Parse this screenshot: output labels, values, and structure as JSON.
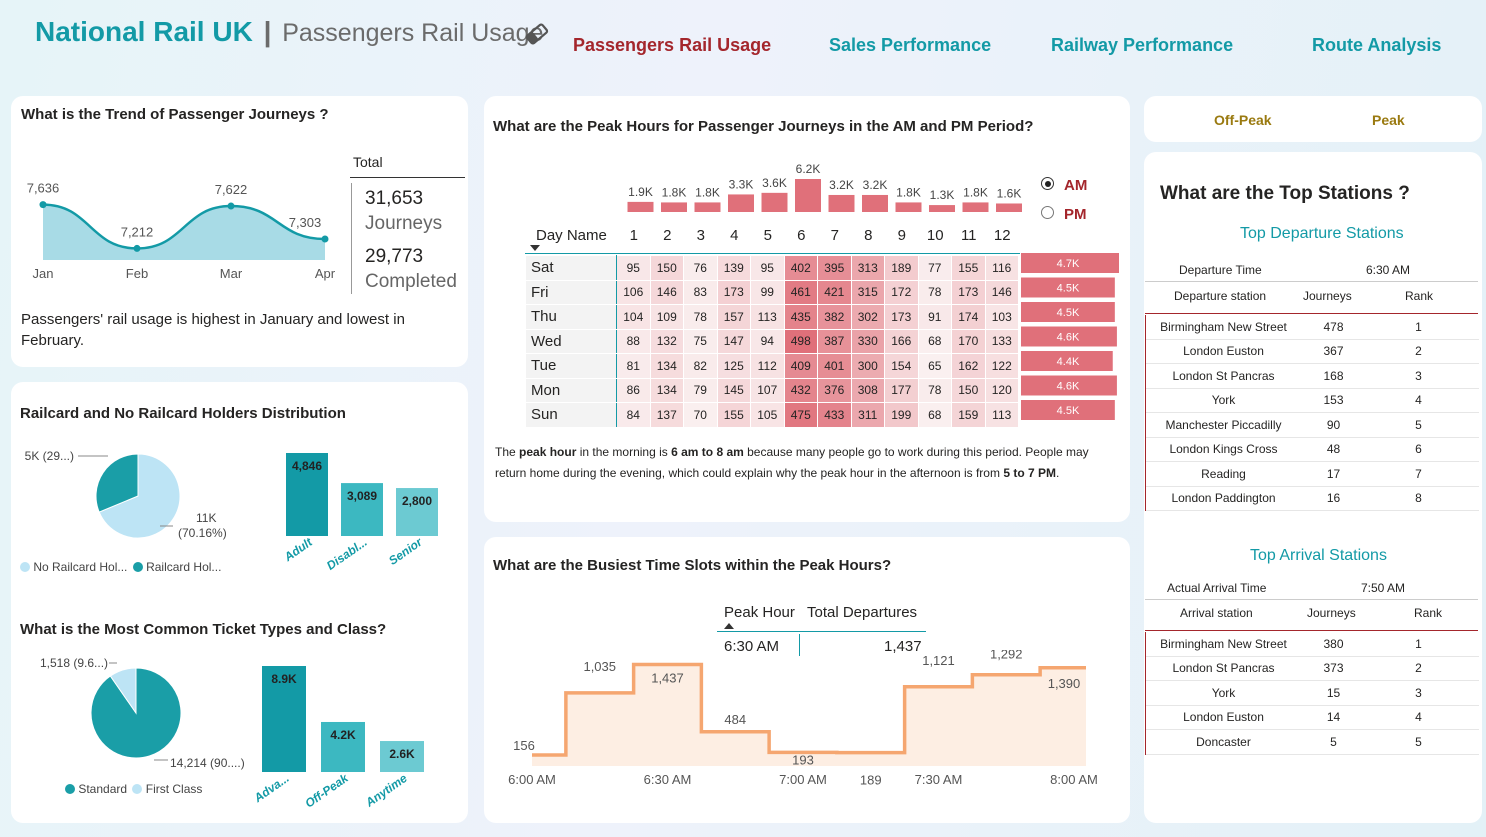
{
  "header": {
    "brand": "National Rail UK",
    "sep": "|",
    "subtitle": "Passengers Rail Usage"
  },
  "nav": {
    "items": [
      "Passengers Rail Usage",
      "Sales Performance",
      "Railway Performance",
      "Route Analysis"
    ],
    "active_color": "#a4262c",
    "color": "#139aa6"
  },
  "trend": {
    "title": "What is the Trend of Passenger Journeys ?",
    "total_label": "Total",
    "journeys_value": "31,653",
    "journeys_label": "Journeys",
    "completed_value": "29,773",
    "completed_label": "Completed",
    "insight": "Passengers' rail usage is highest in January and lowest in February."
  },
  "railcard": {
    "title": "Railcard and No Railcard Holders Distribution",
    "legend": [
      "No Railcard Hol...",
      "Railcard Hol..."
    ]
  },
  "ticket": {
    "title": "What is the Most Common Ticket Types and Class?",
    "legend": [
      "Standard",
      "First Class"
    ]
  },
  "peak": {
    "title": "What are the Peak Hours for Passenger Journeys in the AM and PM Period?",
    "day_header": "Day Name",
    "am": "AM",
    "pm": "PM",
    "insight_parts": [
      "The ",
      "peak hour",
      " in the morning is ",
      "6 am to 8 am",
      " because many people go to work during this period. People may return home during the evening, which could explain why the peak hour in the afternoon is from ",
      "5 to 7 PM",
      "."
    ]
  },
  "slots": {
    "title": "What are the Busiest Time Slots within the Peak Hours?",
    "col1": "Peak Hour",
    "col2": "Total Departures",
    "row_time": "6:30 AM",
    "row_value": "1,437"
  },
  "tabs": {
    "offpeak": "Off-Peak",
    "peak": "Peak"
  },
  "stations": {
    "title": "What are the Top Stations ?",
    "dep_title": "Top Departure Stations",
    "dep_time_label": "Departure Time",
    "dep_time_value": "6:30 AM",
    "dep_cols": [
      "Departure station",
      "Journeys",
      "Rank"
    ],
    "dep_rows": [
      [
        "Birmingham New Street",
        "478",
        "1"
      ],
      [
        "London Euston",
        "367",
        "2"
      ],
      [
        "London St Pancras",
        "168",
        "3"
      ],
      [
        "York",
        "153",
        "4"
      ],
      [
        "Manchester Piccadilly",
        "90",
        "5"
      ],
      [
        "London Kings Cross",
        "48",
        "6"
      ],
      [
        "Reading",
        "17",
        "7"
      ],
      [
        "London Paddington",
        "16",
        "8"
      ]
    ],
    "arr_title": "Top Arrival Stations",
    "arr_time_label": "Actual Arrival Time",
    "arr_time_value": "7:50 AM",
    "arr_cols": [
      "Arrival station",
      "Journeys",
      "Rank"
    ],
    "arr_rows": [
      [
        "Birmingham New Street",
        "380",
        "1"
      ],
      [
        "London St Pancras",
        "373",
        "2"
      ],
      [
        "York",
        "15",
        "3"
      ],
      [
        "London Euston",
        "14",
        "4"
      ],
      [
        "Doncaster",
        "5",
        "5"
      ]
    ]
  },
  "chart_data": [
    {
      "type": "area",
      "title": "",
      "categories": [
        "Jan",
        "Feb",
        "Mar",
        "Apr"
      ],
      "values": [
        7636,
        7212,
        7622,
        7303
      ],
      "labels": [
        "7,636",
        "7,212",
        "7,622",
        "7,303"
      ],
      "color": "#139aa6"
    },
    {
      "type": "pie",
      "slices": [
        {
          "name": "No Railcard Hol...",
          "value": 11000,
          "label": "11K",
          "pct_label": "(70.16%)",
          "color": "#bde4f5"
        },
        {
          "name": "Railcard Hol...",
          "value": 5000,
          "label": "5K (29...)",
          "color": "#1a9ea7"
        }
      ]
    },
    {
      "type": "bar",
      "categories": [
        "Adult",
        "Disabl...",
        "Senior"
      ],
      "values": [
        4846,
        3089,
        2800
      ],
      "labels": [
        "4,846",
        "3,089",
        "2,800"
      ],
      "colors": [
        "#139aa6",
        "#3cb8c1",
        "#6ccad2"
      ]
    },
    {
      "type": "pie",
      "slices": [
        {
          "name": "Standard",
          "value": 14214,
          "label": "14,214 (90....)",
          "color": "#1a9ea7"
        },
        {
          "name": "First Class",
          "value": 1518,
          "label": "1,518 (9.6...)",
          "color": "#bde4f5"
        }
      ]
    },
    {
      "type": "bar",
      "categories": [
        "Adva...",
        "Off-Peak",
        "Anytime"
      ],
      "values": [
        8900,
        4200,
        2600
      ],
      "labels": [
        "8.9K",
        "4.2K",
        "2.6K"
      ],
      "colors": [
        "#139aa6",
        "#3cb8c1",
        "#6ccad2"
      ]
    },
    {
      "type": "heatmap",
      "hours": [
        "1",
        "2",
        "3",
        "4",
        "5",
        "6",
        "7",
        "8",
        "9",
        "10",
        "11",
        "12"
      ],
      "column_totals": [
        "1.9K",
        "1.8K",
        "1.8K",
        "3.3K",
        "3.6K",
        "6.2K",
        "3.2K",
        "3.2K",
        "1.8K",
        "1.3K",
        "1.8K",
        "1.6K"
      ],
      "column_total_values": [
        1900,
        1800,
        1800,
        3300,
        3600,
        6200,
        3200,
        3200,
        1800,
        1300,
        1800,
        1600
      ],
      "days": [
        "Sat",
        "Fri",
        "Thu",
        "Wed",
        "Tue",
        "Mon",
        "Sun"
      ],
      "values": [
        [
          95,
          150,
          76,
          139,
          95,
          402,
          395,
          313,
          189,
          77,
          155,
          116
        ],
        [
          106,
          146,
          83,
          173,
          99,
          461,
          421,
          315,
          172,
          78,
          173,
          146
        ],
        [
          104,
          109,
          78,
          157,
          113,
          435,
          382,
          302,
          173,
          91,
          174,
          103
        ],
        [
          88,
          132,
          75,
          147,
          94,
          498,
          387,
          330,
          166,
          68,
          170,
          133
        ],
        [
          81,
          134,
          82,
          125,
          112,
          409,
          401,
          300,
          154,
          65,
          162,
          122
        ],
        [
          86,
          134,
          79,
          145,
          107,
          432,
          376,
          308,
          177,
          78,
          150,
          120
        ],
        [
          84,
          137,
          70,
          155,
          105,
          475,
          433,
          311,
          199,
          68,
          159,
          113
        ]
      ],
      "row_totals": [
        "4.7K",
        "4.5K",
        "4.5K",
        "4.6K",
        "4.4K",
        "4.6K",
        "4.5K"
      ],
      "row_total_values": [
        4700,
        4500,
        4500,
        4600,
        4400,
        4600,
        4500
      ]
    },
    {
      "type": "line",
      "title": "",
      "x_ticks": [
        "6:00 AM",
        "6:30 AM",
        "7:00 AM",
        "7:30 AM",
        "8:00 AM"
      ],
      "x_minutes_after_6am": [
        0,
        15,
        30,
        45,
        60,
        75,
        90,
        105,
        120
      ],
      "values": [
        156,
        1035,
        1437,
        484,
        193,
        189,
        1121,
        1292,
        1390
      ],
      "labels": [
        "156",
        "1,035",
        "1,437",
        "484",
        "193",
        "189",
        "1,121",
        "1,292",
        "1,390"
      ],
      "color": "#f5a670"
    }
  ]
}
